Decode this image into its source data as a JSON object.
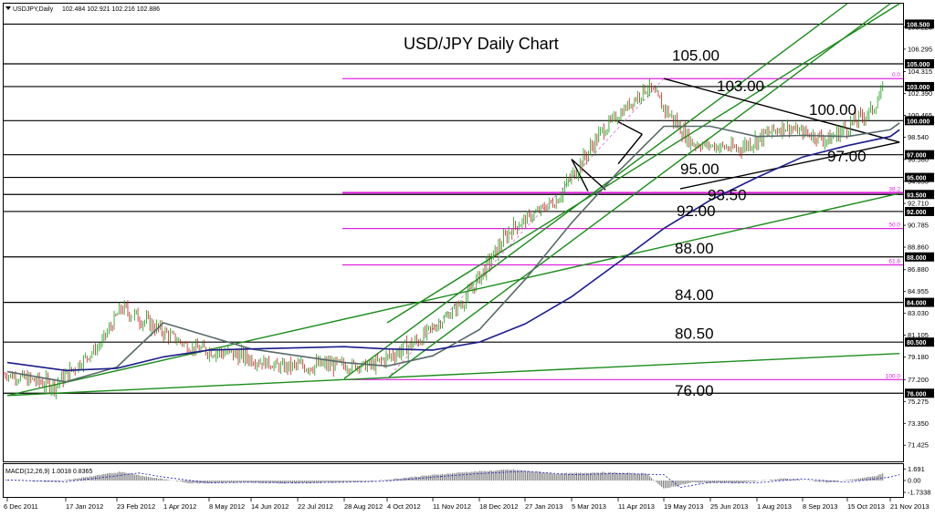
{
  "header": {
    "symbol_label": "USDJPY,Daily",
    "ohlc": "102.484 102.921 102.216 102.886"
  },
  "chart_data": {
    "type": "candlestick",
    "title": "USD/JPY Daily Chart",
    "xlabel": "",
    "ylabel": "",
    "ylim": [
      70.0,
      110.3
    ],
    "x_ticks": [
      "6 Dec 2011",
      "17 Jan 2012",
      "23 Feb 2012",
      "1 Apr 2012",
      "8 May 2012",
      "14 Jun 2012",
      "22 Jul 2012",
      "28 Aug 2012",
      "4 Oct 2012",
      "11 Nov 2012",
      "18 Dec 2012",
      "27 Jan 2013",
      "5 Mar 2013",
      "11 Apr 2013",
      "19 May 2013",
      "25 Jun 2013",
      "1 Aug 2013",
      "8 Sep 2013",
      "15 Oct 2013",
      "21 Nov 2013"
    ],
    "y_ticks": [
      "108.225",
      "106.295",
      "104.315",
      "102.390",
      "100.465",
      "98.540",
      "96.580",
      "94.655",
      "92.710",
      "90.785",
      "88.860",
      "86.880",
      "84.955",
      "83.030",
      "81.105",
      "79.180",
      "77.200",
      "75.275",
      "73.350",
      "71.425"
    ],
    "price_labels": [
      {
        "text": "108.500",
        "value": 108.5
      },
      {
        "text": "105.000",
        "value": 105.0
      },
      {
        "text": "103.000",
        "value": 103.0
      },
      {
        "text": "100.000",
        "value": 100.0
      },
      {
        "text": "97.000",
        "value": 97.0
      },
      {
        "text": "95.000",
        "value": 95.0
      },
      {
        "text": "93.500",
        "value": 93.5
      },
      {
        "text": "92.000",
        "value": 92.0
      },
      {
        "text": "88.000",
        "value": 88.0
      },
      {
        "text": "84.000",
        "value": 84.0
      },
      {
        "text": "80.500",
        "value": 80.5
      },
      {
        "text": "76.000",
        "value": 76.0
      }
    ],
    "horizontal_levels": [
      {
        "label": "108.500",
        "value": 108.5
      },
      {
        "label": "105.00",
        "value": 105.0
      },
      {
        "label": "103.00",
        "value": 103.0
      },
      {
        "label": "100.00",
        "value": 100.0
      },
      {
        "label": "97.00",
        "value": 97.0
      },
      {
        "label": "95.00",
        "value": 95.0
      },
      {
        "label": "93.50",
        "value": 93.5
      },
      {
        "label": "92.00",
        "value": 92.0
      },
      {
        "label": "88.00",
        "value": 88.0
      },
      {
        "label": "84.00",
        "value": 84.0
      },
      {
        "label": "80.50",
        "value": 80.5
      },
      {
        "label": "76.00",
        "value": 76.0
      }
    ],
    "fibonacci_levels": [
      {
        "label": "0.0",
        "value": 103.7
      },
      {
        "label": "38.2",
        "value": 93.65
      },
      {
        "label": "50.0",
        "value": 90.5
      },
      {
        "label": "61.8",
        "value": 87.3
      },
      {
        "label": "100.0",
        "value": 77.2
      }
    ],
    "price_series": [
      {
        "date": "6 Dec 2011",
        "close": 77.7
      },
      {
        "date": "17 Jan 2012",
        "close": 76.7
      },
      {
        "date": "23 Feb 2012",
        "close": 80.2
      },
      {
        "date": "12 Mar 2012",
        "close": 83.5
      },
      {
        "date": "1 Apr 2012",
        "close": 82.3
      },
      {
        "date": "8 May 2012",
        "close": 80.0
      },
      {
        "date": "14 Jun 2012",
        "close": 79.4
      },
      {
        "date": "22 Jul 2012",
        "close": 78.3
      },
      {
        "date": "28 Aug 2012",
        "close": 78.5
      },
      {
        "date": "4 Oct 2012",
        "close": 78.4
      },
      {
        "date": "11 Nov 2012",
        "close": 80.6
      },
      {
        "date": "18 Dec 2012",
        "close": 84.0
      },
      {
        "date": "27 Jan 2013",
        "close": 90.5
      },
      {
        "date": "5 Mar 2013",
        "close": 93.0
      },
      {
        "date": "11 Apr 2013",
        "close": 99.0
      },
      {
        "date": "19 May 2013",
        "close": 103.0
      },
      {
        "date": "25 Jun 2013",
        "close": 98.0
      },
      {
        "date": "1 Aug 2013",
        "close": 97.5
      },
      {
        "date": "8 Sep 2013",
        "close": 99.5
      },
      {
        "date": "15 Oct 2013",
        "close": 98.3
      },
      {
        "date": "21 Nov 2013",
        "close": 101.0
      },
      {
        "date": "29 Nov 2013",
        "close": 102.9
      }
    ],
    "moving_averages": [
      {
        "color": "#596a6a",
        "points": [
          [
            "6 Dec 2011",
            77.9
          ],
          [
            "17 Jan 2012",
            77.0
          ],
          [
            "23 Feb 2012",
            78.3
          ],
          [
            "1 Apr 2012",
            82.2
          ],
          [
            "8 May 2012",
            81.0
          ],
          [
            "14 Jun 2012",
            79.9
          ],
          [
            "22 Jul 2012",
            79.3
          ],
          [
            "28 Aug 2012",
            78.7
          ],
          [
            "4 Oct 2012",
            78.4
          ],
          [
            "11 Nov 2012",
            79.3
          ],
          [
            "18 Dec 2012",
            81.6
          ],
          [
            "27 Jan 2013",
            86.0
          ],
          [
            "5 Mar 2013",
            91.0
          ],
          [
            "11 Apr 2013",
            95.5
          ],
          [
            "19 May 2013",
            99.5
          ],
          [
            "25 Jun 2013",
            99.5
          ],
          [
            "1 Aug 2013",
            98.6
          ],
          [
            "8 Sep 2013",
            98.7
          ],
          [
            "15 Oct 2013",
            98.6
          ],
          [
            "21 Nov 2013",
            99.2
          ],
          [
            "29 Nov 2013",
            99.8
          ]
        ]
      },
      {
        "color": "#1c1c8c",
        "points": [
          [
            "6 Dec 2011",
            78.7
          ],
          [
            "17 Jan 2012",
            78.0
          ],
          [
            "23 Feb 2012",
            78.2
          ],
          [
            "1 Apr 2012",
            79.2
          ],
          [
            "8 May 2012",
            79.8
          ],
          [
            "14 Jun 2012",
            79.9
          ],
          [
            "22 Jul 2012",
            80.0
          ],
          [
            "28 Aug 2012",
            80.1
          ],
          [
            "4 Oct 2012",
            79.9
          ],
          [
            "11 Nov 2012",
            79.8
          ],
          [
            "18 Dec 2012",
            80.5
          ],
          [
            "27 Jan 2013",
            82.1
          ],
          [
            "5 Mar 2013",
            84.5
          ],
          [
            "11 Apr 2013",
            87.5
          ],
          [
            "19 May 2013",
            90.5
          ],
          [
            "25 Jun 2013",
            93.0
          ],
          [
            "1 Aug 2013",
            95.0
          ],
          [
            "8 Sep 2013",
            96.8
          ],
          [
            "15 Oct 2013",
            97.8
          ],
          [
            "21 Nov 2013",
            98.6
          ],
          [
            "29 Nov 2013",
            99.2
          ]
        ]
      }
    ],
    "trendlines": [
      {
        "color": "#1a8c1a",
        "points": [
          [
            "6 Dec 2011",
            75.8
          ],
          [
            "29 Nov 2013",
            79.5
          ]
        ]
      },
      {
        "color": "#1a8c1a",
        "points": [
          [
            "6 Dec 2011",
            75.8
          ],
          [
            "29 Nov 2013",
            93.6
          ]
        ]
      },
      {
        "color": "#1a8c1a",
        "points": [
          [
            "28 Aug 2012",
            77.3
          ],
          [
            "15 Oct 2013",
            110.3
          ]
        ]
      },
      {
        "color": "#1a8c1a",
        "points": [
          [
            "4 Oct 2012",
            77.3
          ],
          [
            "21 Nov 2013",
            110.3
          ]
        ]
      },
      {
        "color": "#1a8c1a",
        "points": [
          [
            "4 Oct 2012",
            82.2
          ],
          [
            "29 Nov 2013",
            110.3
          ]
        ]
      },
      {
        "color": "#000000",
        "points": [
          [
            "19 May 2013",
            103.7
          ],
          [
            "29 Nov 2013",
            98.1
          ]
        ]
      },
      {
        "color": "#000000",
        "points": [
          [
            "1 Jun 2013",
            94.0
          ],
          [
            "29 Nov 2013",
            98.1
          ]
        ]
      }
    ],
    "annotations": [
      "105.00",
      "103.00",
      "100.00",
      "97.00",
      "95.00",
      "93.50",
      "92.00",
      "88.00",
      "84.00",
      "80.50",
      "76.00"
    ],
    "grid": false,
    "legend": "none",
    "macd": {
      "label": "MACD(12,26,9) 1.0018 0.8365",
      "y_ticks": [
        "1.691",
        "0.00",
        "-1.7338"
      ],
      "ylim": [
        -2.0,
        2.0
      ],
      "histogram": [
        {
          "date": "6 Dec 2011",
          "value": 0.1
        },
        {
          "date": "17 Jan 2012",
          "value": -0.2
        },
        {
          "date": "23 Feb 2012",
          "value": 0.8
        },
        {
          "date": "12 Mar 2012",
          "value": 1.3
        },
        {
          "date": "1 Apr 2012",
          "value": 0.6
        },
        {
          "date": "8 May 2012",
          "value": -0.4
        },
        {
          "date": "14 Jun 2012",
          "value": -0.3
        },
        {
          "date": "22 Jul 2012",
          "value": -0.4
        },
        {
          "date": "28 Aug 2012",
          "value": -0.3
        },
        {
          "date": "4 Oct 2012",
          "value": -0.1
        },
        {
          "date": "11 Nov 2012",
          "value": 0.6
        },
        {
          "date": "18 Dec 2012",
          "value": 1.2
        },
        {
          "date": "27 Jan 2013",
          "value": 1.6
        },
        {
          "date": "5 Mar 2013",
          "value": 1.0
        },
        {
          "date": "11 Apr 2013",
          "value": 1.2
        },
        {
          "date": "19 May 2013",
          "value": 1.0
        },
        {
          "date": "1 Jun 2013",
          "value": -1.2
        },
        {
          "date": "25 Jun 2013",
          "value": -0.3
        },
        {
          "date": "1 Aug 2013",
          "value": -0.4
        },
        {
          "date": "8 Sep 2013",
          "value": 0.3
        },
        {
          "date": "15 Oct 2013",
          "value": -0.3
        },
        {
          "date": "21 Nov 2013",
          "value": 0.6
        },
        {
          "date": "29 Nov 2013",
          "value": 1.0
        }
      ]
    }
  }
}
